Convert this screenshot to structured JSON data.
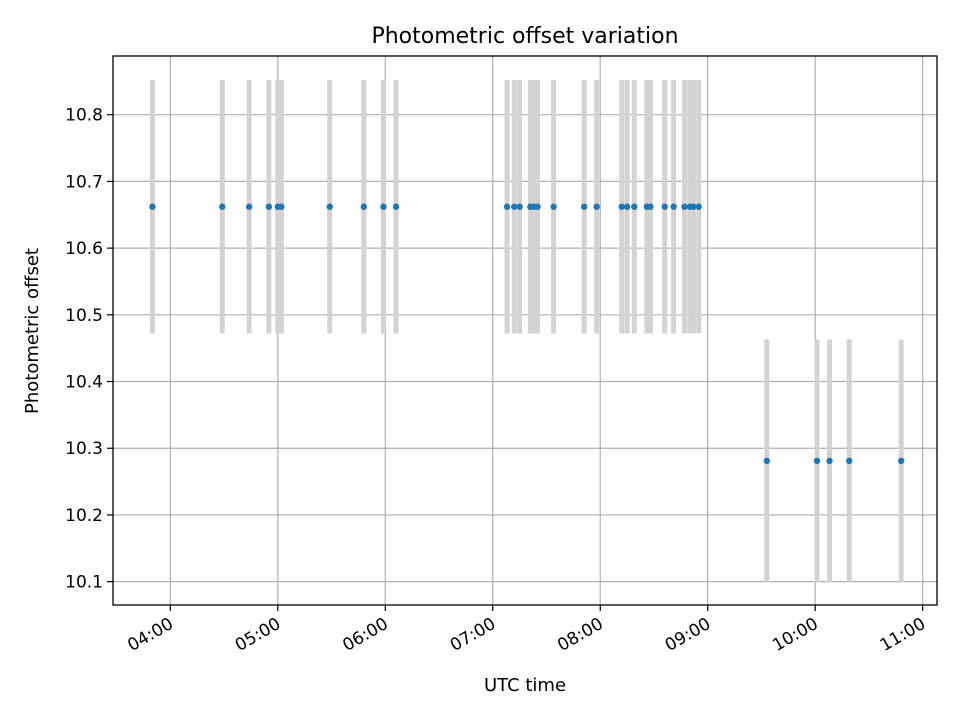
{
  "chart_data": {
    "type": "scatter",
    "title": "Photometric offset variation",
    "xlabel": "UTC time",
    "ylabel": "Photometric offset",
    "x_axis": "time",
    "xlim": [
      "03:28",
      "11:08"
    ],
    "ylim": [
      10.065,
      10.888
    ],
    "grid": true,
    "colors": {
      "points": "#1f77b4",
      "error_bars": "#d3d3d3",
      "grid": "#b0b0b0"
    },
    "xticks": [
      "04:00",
      "05:00",
      "06:00",
      "07:00",
      "08:00",
      "09:00",
      "10:00",
      "11:00"
    ],
    "yticks": [
      10.1,
      10.2,
      10.3,
      10.4,
      10.5,
      10.6,
      10.7,
      10.8
    ],
    "series": [
      {
        "x": [
          "03:50",
          "04:29",
          "04:44",
          "04:55",
          "05:00",
          "05:02",
          "05:29",
          "05:48",
          "05:59",
          "06:06",
          "07:08",
          "07:12",
          "07:15",
          "07:21",
          "07:23",
          "07:25",
          "07:34",
          "07:51",
          "07:58",
          "08:12",
          "08:15",
          "08:19",
          "08:26",
          "08:28",
          "08:36",
          "08:41",
          "08:47",
          "08:50",
          "08:52",
          "08:55"
        ],
        "y": [
          10.662,
          10.662,
          10.662,
          10.662,
          10.662,
          10.662,
          10.662,
          10.662,
          10.662,
          10.662,
          10.662,
          10.662,
          10.662,
          10.662,
          10.662,
          10.662,
          10.662,
          10.662,
          10.662,
          10.662,
          10.662,
          10.662,
          10.662,
          10.662,
          10.662,
          10.662,
          10.662,
          10.662,
          10.662,
          10.662
        ],
        "yerr": 0.19
      },
      {
        "x": [
          "09:33",
          "10:01",
          "10:08",
          "10:19",
          "10:48"
        ],
        "y": [
          10.281,
          10.281,
          10.281,
          10.281,
          10.281
        ],
        "yerr": 0.182
      }
    ]
  }
}
